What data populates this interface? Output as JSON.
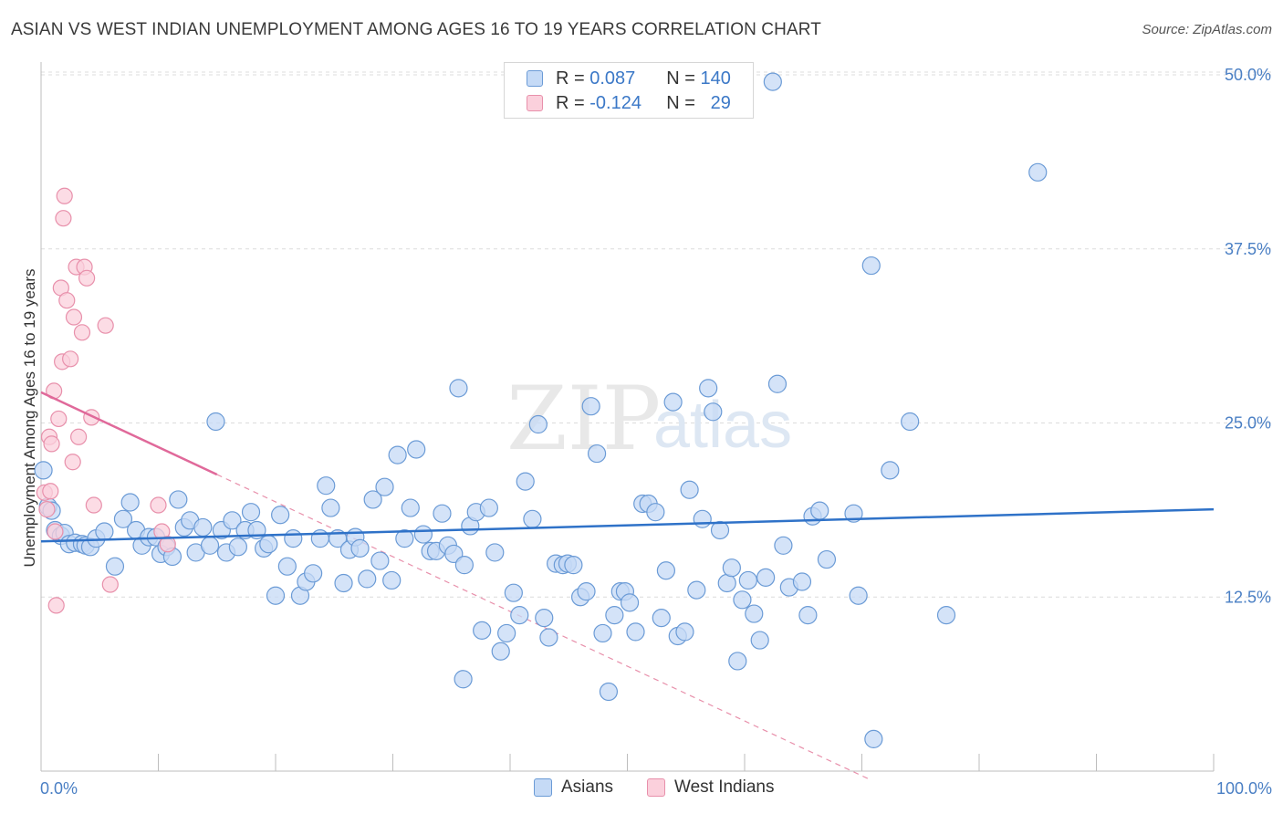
{
  "header": {
    "title": "ASIAN VS WEST INDIAN UNEMPLOYMENT AMONG AGES 16 TO 19 YEARS CORRELATION CHART",
    "source": "Source: ZipAtlas.com"
  },
  "watermark": {
    "zip": "ZIP",
    "atlas": "atlas"
  },
  "legend": {
    "asians": {
      "r_label": "R =",
      "r_value": "0.087",
      "n_label": "N =",
      "n_value": "140"
    },
    "west_indians": {
      "r_label": "R =",
      "r_value": "-0.124",
      "n_label": "N =",
      "n_value": "29"
    }
  },
  "bottom_legend": {
    "asians": "Asians",
    "west_indians": "West Indians"
  },
  "colors": {
    "asians_fill": "#c5daf6",
    "asians_stroke": "#6b9bd6",
    "asians_line": "#2f72c8",
    "west_fill": "#fbd0dc",
    "west_stroke": "#e890ab",
    "west_line": "#e0699a",
    "grid": "#dcdcdc",
    "axis_text": "#4a7fc4"
  },
  "chart_data": {
    "type": "scatter",
    "title": "ASIAN VS WEST INDIAN UNEMPLOYMENT AMONG AGES 16 TO 19 YEARS CORRELATION CHART",
    "xlabel": "",
    "ylabel": "Unemployment Among Ages 16 to 19 years",
    "xlim": [
      0,
      100
    ],
    "ylim": [
      0,
      50
    ],
    "x_tick_labels": [
      "0.0%",
      "100.0%"
    ],
    "y_ticks": [
      12.5,
      25.0,
      37.5,
      50.0
    ],
    "y_tick_labels": [
      "12.5%",
      "25.0%",
      "37.5%",
      "50.0%"
    ],
    "grid": true,
    "legend_position": "top-center",
    "series": [
      {
        "name": "Asians",
        "r": 0.087,
        "n": 140,
        "trend": {
          "x": [
            0,
            100
          ],
          "y": [
            16.5,
            18.8
          ]
        },
        "points": [
          [
            0.2,
            21.6
          ],
          [
            0.6,
            19.0
          ],
          [
            0.9,
            18.7
          ],
          [
            1.2,
            17.3
          ],
          [
            1.7,
            16.9
          ],
          [
            2.0,
            17.1
          ],
          [
            2.4,
            16.3
          ],
          [
            2.9,
            16.4
          ],
          [
            3.5,
            16.3
          ],
          [
            3.8,
            16.2
          ],
          [
            4.2,
            16.1
          ],
          [
            4.7,
            16.7
          ],
          [
            5.4,
            17.2
          ],
          [
            6.3,
            14.7
          ],
          [
            7.0,
            18.1
          ],
          [
            7.6,
            19.3
          ],
          [
            8.1,
            17.3
          ],
          [
            8.6,
            16.2
          ],
          [
            9.2,
            16.8
          ],
          [
            9.8,
            16.8
          ],
          [
            10.2,
            15.6
          ],
          [
            10.7,
            16.1
          ],
          [
            11.2,
            15.4
          ],
          [
            11.7,
            19.5
          ],
          [
            12.2,
            17.5
          ],
          [
            12.7,
            18.0
          ],
          [
            13.2,
            15.7
          ],
          [
            13.8,
            17.5
          ],
          [
            14.4,
            16.2
          ],
          [
            14.9,
            25.1
          ],
          [
            15.4,
            17.3
          ],
          [
            15.8,
            15.7
          ],
          [
            16.3,
            18.0
          ],
          [
            16.8,
            16.1
          ],
          [
            17.4,
            17.3
          ],
          [
            17.9,
            18.6
          ],
          [
            18.4,
            17.3
          ],
          [
            19.0,
            16.0
          ],
          [
            19.4,
            16.3
          ],
          [
            20.0,
            12.6
          ],
          [
            20.4,
            18.4
          ],
          [
            21.0,
            14.7
          ],
          [
            21.5,
            16.7
          ],
          [
            22.1,
            12.6
          ],
          [
            22.6,
            13.6
          ],
          [
            23.2,
            14.2
          ],
          [
            23.8,
            16.7
          ],
          [
            24.3,
            20.5
          ],
          [
            24.7,
            18.9
          ],
          [
            25.3,
            16.7
          ],
          [
            25.8,
            13.5
          ],
          [
            26.3,
            15.9
          ],
          [
            26.8,
            16.8
          ],
          [
            27.2,
            16.0
          ],
          [
            27.8,
            13.8
          ],
          [
            28.3,
            19.5
          ],
          [
            28.9,
            15.1
          ],
          [
            29.3,
            20.4
          ],
          [
            29.9,
            13.7
          ],
          [
            30.4,
            22.7
          ],
          [
            31.0,
            16.7
          ],
          [
            31.5,
            18.9
          ],
          [
            32.0,
            23.1
          ],
          [
            32.6,
            17.0
          ],
          [
            33.2,
            15.8
          ],
          [
            33.7,
            15.8
          ],
          [
            34.2,
            18.5
          ],
          [
            34.7,
            16.2
          ],
          [
            35.2,
            15.6
          ],
          [
            35.6,
            27.5
          ],
          [
            36.1,
            14.8
          ],
          [
            36.6,
            17.6
          ],
          [
            37.1,
            18.6
          ],
          [
            37.6,
            10.1
          ],
          [
            38.2,
            18.9
          ],
          [
            38.7,
            15.7
          ],
          [
            39.2,
            8.6
          ],
          [
            39.7,
            9.9
          ],
          [
            40.3,
            12.8
          ],
          [
            40.8,
            11.2
          ],
          [
            41.3,
            20.8
          ],
          [
            41.9,
            18.1
          ],
          [
            42.4,
            24.9
          ],
          [
            42.9,
            11.0
          ],
          [
            43.3,
            9.6
          ],
          [
            43.9,
            14.9
          ],
          [
            44.5,
            14.8
          ],
          [
            44.9,
            14.9
          ],
          [
            45.4,
            14.8
          ],
          [
            46.0,
            12.5
          ],
          [
            46.5,
            12.9
          ],
          [
            46.9,
            26.2
          ],
          [
            47.4,
            22.8
          ],
          [
            47.9,
            9.9
          ],
          [
            48.4,
            5.7
          ],
          [
            48.9,
            11.2
          ],
          [
            49.4,
            12.9
          ],
          [
            49.8,
            12.9
          ],
          [
            50.2,
            12.1
          ],
          [
            50.7,
            10.0
          ],
          [
            51.3,
            19.2
          ],
          [
            51.8,
            19.2
          ],
          [
            52.4,
            18.6
          ],
          [
            52.9,
            11.0
          ],
          [
            53.3,
            14.4
          ],
          [
            53.9,
            26.5
          ],
          [
            54.3,
            9.7
          ],
          [
            54.9,
            10.0
          ],
          [
            55.3,
            20.2
          ],
          [
            55.9,
            13.0
          ],
          [
            56.4,
            18.1
          ],
          [
            56.9,
            27.5
          ],
          [
            57.3,
            25.8
          ],
          [
            57.9,
            17.3
          ],
          [
            58.5,
            13.5
          ],
          [
            58.9,
            14.6
          ],
          [
            59.4,
            7.9
          ],
          [
            59.8,
            12.3
          ],
          [
            60.3,
            13.7
          ],
          [
            60.8,
            11.3
          ],
          [
            61.3,
            9.4
          ],
          [
            61.8,
            13.9
          ],
          [
            62.4,
            49.5
          ],
          [
            62.8,
            27.8
          ],
          [
            63.3,
            16.2
          ],
          [
            63.8,
            13.2
          ],
          [
            64.9,
            13.6
          ],
          [
            65.4,
            11.2
          ],
          [
            65.8,
            18.3
          ],
          [
            66.4,
            18.7
          ],
          [
            67.0,
            15.2
          ],
          [
            69.3,
            18.5
          ],
          [
            69.7,
            12.6
          ],
          [
            70.8,
            36.3
          ],
          [
            72.4,
            21.6
          ],
          [
            74.1,
            25.1
          ],
          [
            77.2,
            11.2
          ],
          [
            85.0,
            43.0
          ],
          [
            71.0,
            2.3
          ],
          [
            36.0,
            6.6
          ]
        ]
      },
      {
        "name": "West Indians",
        "r": -0.124,
        "n": 29,
        "trend": {
          "x": [
            0,
            15
          ],
          "y": [
            27.2,
            21.3
          ]
        },
        "points": [
          [
            0.3,
            20.0
          ],
          [
            0.5,
            18.8
          ],
          [
            0.7,
            24.0
          ],
          [
            0.9,
            23.5
          ],
          [
            1.1,
            27.3
          ],
          [
            1.2,
            17.2
          ],
          [
            1.3,
            11.9
          ],
          [
            1.5,
            25.3
          ],
          [
            1.7,
            34.7
          ],
          [
            1.8,
            29.4
          ],
          [
            1.9,
            39.7
          ],
          [
            2.0,
            41.3
          ],
          [
            2.2,
            33.8
          ],
          [
            2.5,
            29.6
          ],
          [
            2.7,
            22.2
          ],
          [
            2.8,
            32.6
          ],
          [
            3.0,
            36.2
          ],
          [
            3.2,
            24.0
          ],
          [
            3.5,
            31.5
          ],
          [
            3.7,
            36.2
          ],
          [
            3.9,
            35.4
          ],
          [
            4.3,
            25.4
          ],
          [
            4.5,
            19.1
          ],
          [
            5.5,
            32.0
          ],
          [
            5.9,
            13.4
          ],
          [
            10.0,
            19.1
          ],
          [
            10.3,
            17.2
          ],
          [
            10.8,
            16.3
          ],
          [
            0.8,
            20.1
          ]
        ]
      }
    ]
  }
}
